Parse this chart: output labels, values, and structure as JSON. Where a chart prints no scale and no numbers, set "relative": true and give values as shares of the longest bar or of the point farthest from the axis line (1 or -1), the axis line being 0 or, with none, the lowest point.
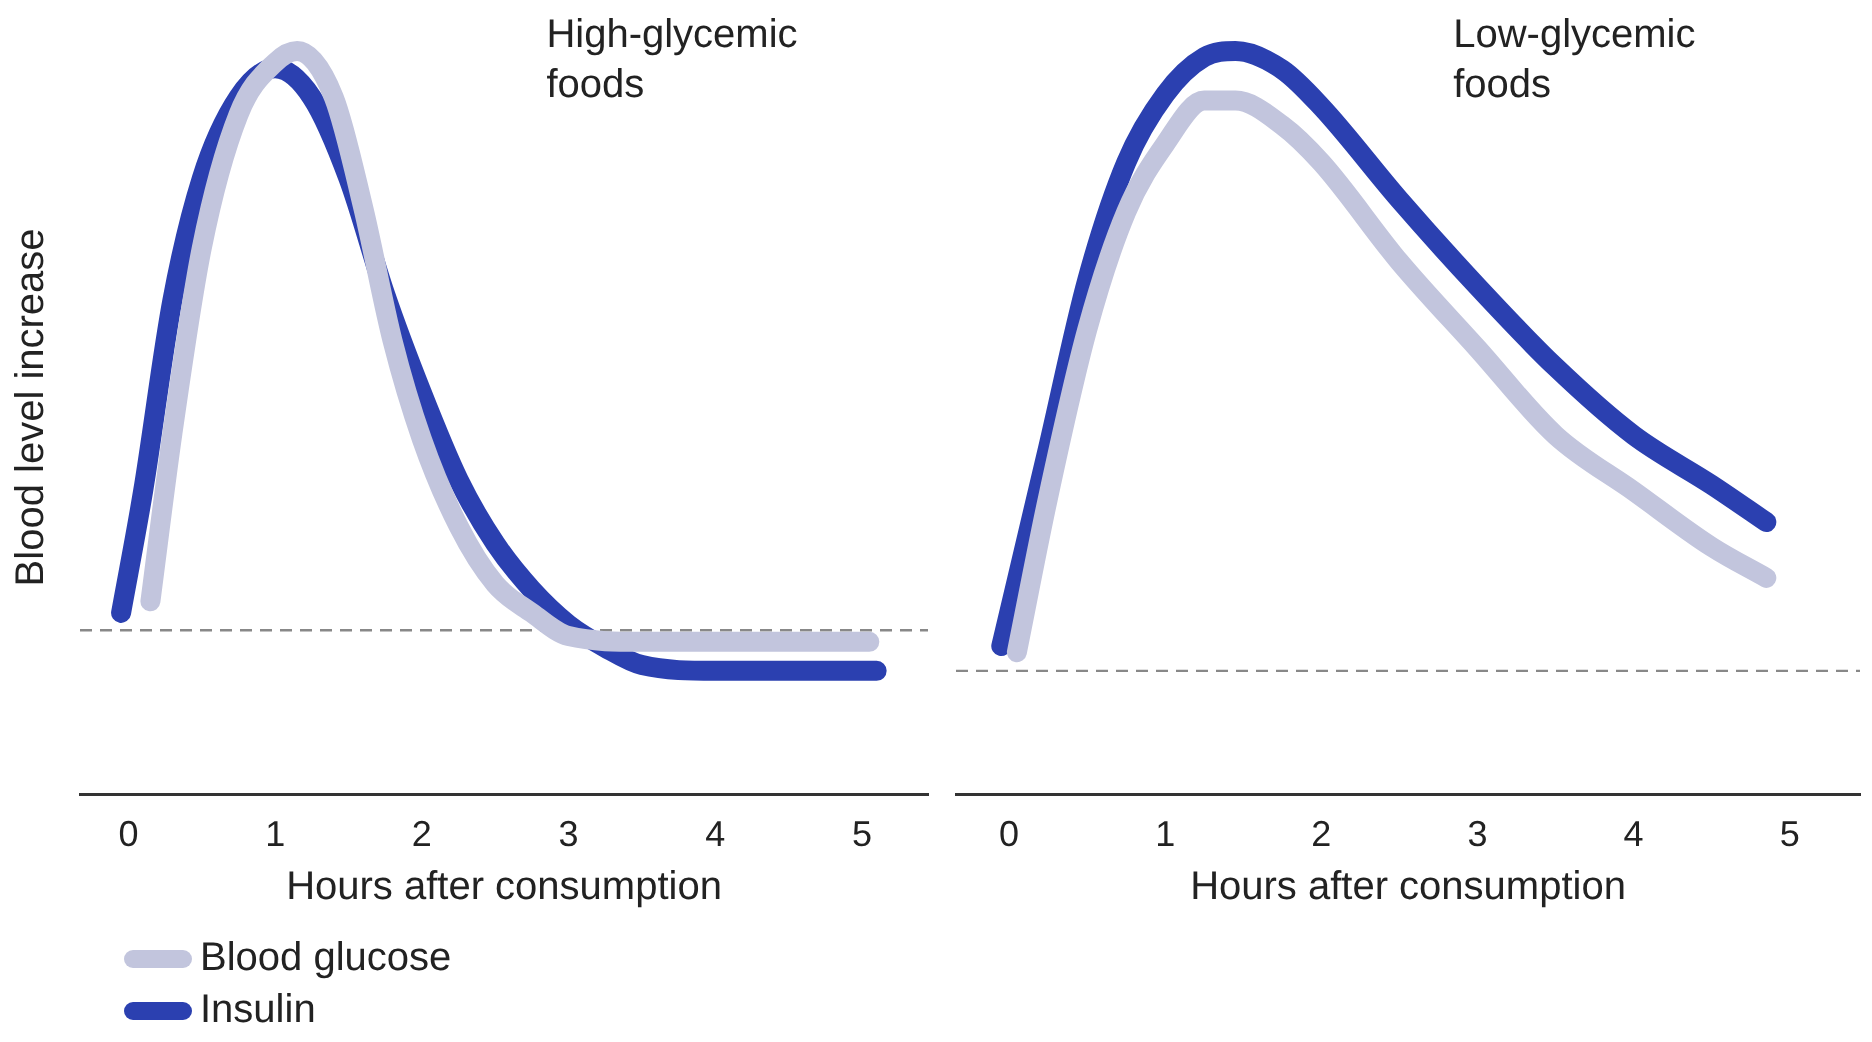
{
  "chart_data": [
    {
      "type": "line",
      "relative": true,
      "annotations": [
        "High-glycemic foods"
      ],
      "xlabel": "Hours after consumption",
      "ylabel": "Blood level increase",
      "xlim": [
        -0.33,
        5.45
      ],
      "xticks": [
        0,
        1,
        2,
        3,
        4,
        5
      ],
      "grid": false,
      "legend": "bottom left",
      "marker": "none",
      "line_style": "solid",
      "ref_lines": [
        {
          "axis": "y",
          "value": 0,
          "color": "#888888",
          "line_style": "dashed"
        }
      ],
      "series": [
        {
          "name": "Blood glucose",
          "color": "#c2c5dd",
          "x": [
            0.15,
            0.3,
            0.5,
            0.75,
            1.0,
            1.15,
            1.4,
            1.6,
            1.8,
            2.0,
            2.25,
            2.5,
            2.75,
            3.0,
            3.5,
            4.0,
            5.05
          ],
          "values": [
            0.05,
            0.34,
            0.66,
            0.89,
            0.98,
            1.0,
            0.92,
            0.73,
            0.5,
            0.33,
            0.18,
            0.08,
            0.03,
            -0.01,
            -0.02,
            -0.02,
            -0.02
          ]
        },
        {
          "name": "Insulin",
          "color": "#2b40b0",
          "x": [
            -0.05,
            0.1,
            0.3,
            0.5,
            0.75,
            1.0,
            1.25,
            1.5,
            1.75,
            2.0,
            2.25,
            2.5,
            2.75,
            3.0,
            3.25,
            3.5,
            4.0,
            4.5,
            5.1
          ],
          "values": [
            0.03,
            0.24,
            0.57,
            0.78,
            0.92,
            0.97,
            0.92,
            0.78,
            0.58,
            0.41,
            0.26,
            0.15,
            0.07,
            0.01,
            -0.03,
            -0.06,
            -0.07,
            -0.07,
            -0.07
          ]
        }
      ]
    },
    {
      "type": "line",
      "relative": true,
      "annotations": [
        "Low-glycemic foods"
      ],
      "xlabel": "Hours after consumption",
      "xlim": [
        -0.34,
        5.45
      ],
      "xticks": [
        0,
        1,
        2,
        3,
        4,
        5
      ],
      "grid": false,
      "marker": "none",
      "line_style": "solid",
      "ref_lines": [
        {
          "axis": "y",
          "value": 0,
          "color": "#888888",
          "line_style": "dashed"
        }
      ],
      "series": [
        {
          "color": "#c2c5dd",
          "x": [
            0.05,
            0.25,
            0.5,
            0.75,
            1.0,
            1.25,
            1.45,
            1.75,
            2.0,
            2.5,
            3.0,
            3.5,
            4.0,
            4.5,
            4.85
          ],
          "values": [
            0.03,
            0.28,
            0.55,
            0.74,
            0.85,
            0.92,
            0.92,
            0.88,
            0.82,
            0.66,
            0.52,
            0.38,
            0.29,
            0.2,
            0.15
          ]
        },
        {
          "color": "#2b40b0",
          "x": [
            -0.05,
            0.25,
            0.5,
            0.75,
            1.0,
            1.25,
            1.45,
            1.75,
            2.0,
            2.5,
            3.0,
            3.5,
            4.0,
            4.5,
            4.85
          ],
          "values": [
            0.04,
            0.36,
            0.63,
            0.82,
            0.93,
            0.99,
            1.0,
            0.97,
            0.91,
            0.76,
            0.62,
            0.49,
            0.38,
            0.3,
            0.24
          ]
        }
      ]
    }
  ]
}
